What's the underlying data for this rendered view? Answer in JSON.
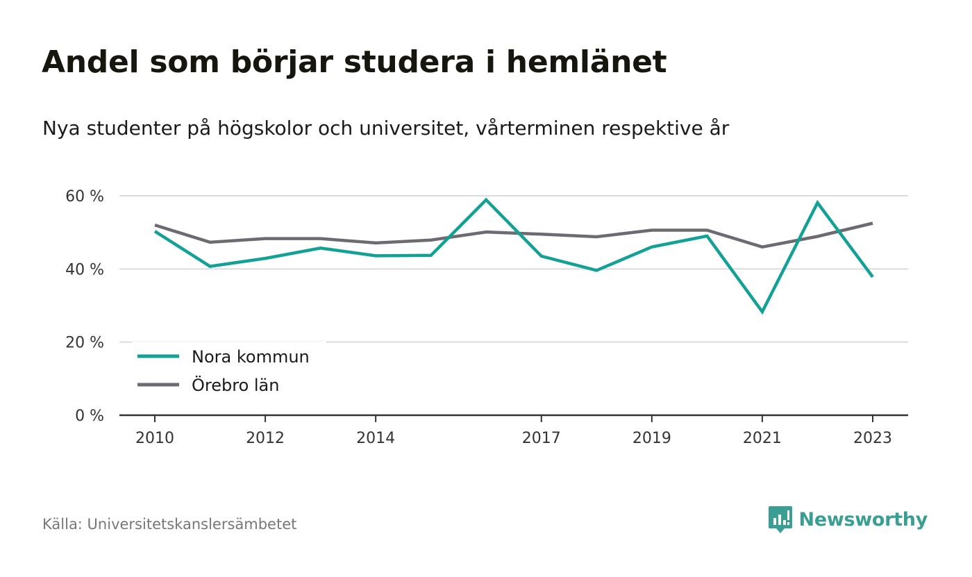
{
  "header": {
    "title": "Andel som börjar studera i hemlänet",
    "subtitle": "Nya studenter på högskolor och universitet, vårterminen respektive år"
  },
  "footer": {
    "source": "Källa: Universitetskanslersämbetet",
    "brand": "Newsworthy",
    "brand_icon": "newsworthy-logo-icon"
  },
  "colors": {
    "nora": "#13a197",
    "orebro": "#6c6b74",
    "grid": "#dcdcdc",
    "axis": "#333333",
    "brand": "#3a9e95"
  },
  "chart_data": {
    "type": "line",
    "title": "Andel som börjar studera i hemlänet",
    "subtitle": "Nya studenter på högskolor och universitet, vårterminen respektive år",
    "xlabel": "",
    "ylabel": "",
    "x": [
      2010,
      2011,
      2012,
      2013,
      2014,
      2015,
      2016,
      2017,
      2018,
      2019,
      2020,
      2021,
      2022,
      2023
    ],
    "x_tick_labels": [
      "2010",
      "2012",
      "2014",
      "2017",
      "2019",
      "2021",
      "2023"
    ],
    "y_tick_labels": [
      "0 %",
      "20 %",
      "40 %",
      "60 %"
    ],
    "y_ticks": [
      0,
      20,
      40,
      60
    ],
    "ylim": [
      0,
      60
    ],
    "grid": true,
    "legend_position": "bottom-left",
    "series": [
      {
        "name": "Nora kommun",
        "color": "#13a197",
        "values": [
          50.3,
          40.7,
          42.9,
          45.7,
          43.6,
          43.7,
          58.9,
          43.5,
          39.6,
          46.0,
          49.0,
          28.3,
          58.1,
          37.8
        ]
      },
      {
        "name": "Örebro län",
        "color": "#6c6b74",
        "values": [
          52.0,
          47.3,
          48.3,
          48.3,
          47.1,
          47.9,
          50.1,
          49.5,
          48.8,
          50.6,
          50.6,
          46.0,
          48.9,
          52.5
        ]
      }
    ]
  }
}
